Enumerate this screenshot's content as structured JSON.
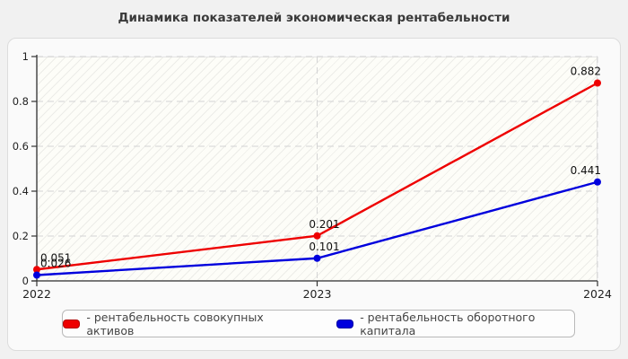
{
  "title": "Динамика показателей экономическая рентабельности",
  "chart_data": {
    "type": "line",
    "x": [
      "2022",
      "2023",
      "2024"
    ],
    "series": [
      {
        "name": "рентабельность совокупных активов",
        "color": "#ee0000",
        "values": [
          0.051,
          0.201,
          0.882
        ]
      },
      {
        "name": "рентабельность оборотного капитала",
        "color": "#0000dd",
        "values": [
          0.026,
          0.101,
          0.441
        ]
      }
    ],
    "ylim": [
      0,
      1
    ],
    "yticks": [
      0,
      0.2,
      0.4,
      0.6,
      0.8,
      1
    ],
    "ytick_labels": [
      "0",
      "0.2",
      "0.4",
      "0.6",
      "0.8",
      "1"
    ],
    "grid": true,
    "point_labels": [
      "0.051",
      "0.201",
      "0.882",
      "0.026",
      "0.101",
      "0.441"
    ],
    "legend_position": "bottom"
  },
  "legend": {
    "items": [
      {
        "label": "- рентабельность совокупных активов",
        "color": "#ee0000"
      },
      {
        "label": "- рентабельность оборотного капитала",
        "color": "#0000dd"
      }
    ]
  },
  "colors": {
    "page_bg": "#f1f1f1",
    "card_bg": "#fafafa",
    "axis": "#333333",
    "gridline": "#d4d4d4",
    "title_text": "#3a3a3a"
  }
}
